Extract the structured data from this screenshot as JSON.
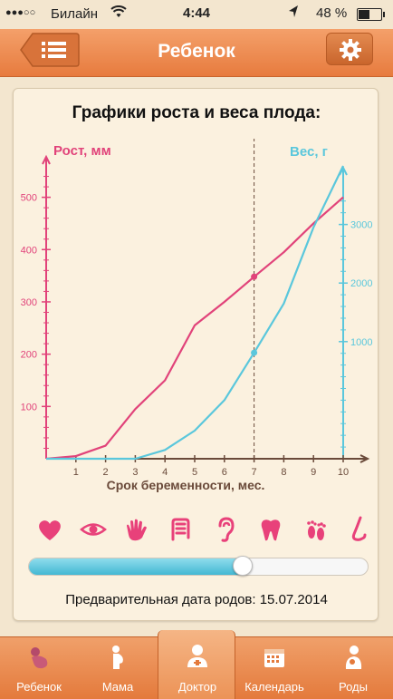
{
  "status": {
    "signal": "●●●○○",
    "carrier": "Билайн",
    "time": "4:44",
    "battery": "48 %",
    "battery_level": 0.48
  },
  "nav": {
    "title": "Ребенок",
    "menu_icon": "menu-icon",
    "settings_icon": "gear-icon"
  },
  "card": {
    "title": "Графики роста и веса плода:",
    "due_date": "Предварительная дата родов: 15.07.2014"
  },
  "chart_data": {
    "type": "line",
    "xlabel": "Срок беременности, мес.",
    "x_ticks": [
      1,
      2,
      3,
      4,
      5,
      6,
      7,
      8,
      9,
      10
    ],
    "xlim": [
      0,
      10.3
    ],
    "marker_x": 7,
    "left_axis": {
      "label": "Рост, мм",
      "ticks": [
        100,
        200,
        300,
        400,
        500
      ],
      "ylim": [
        0,
        560
      ],
      "color": "#e1437a"
    },
    "right_axis": {
      "label": "Вес, г",
      "ticks": [
        1000,
        2000,
        3000
      ],
      "ylim": [
        -1000,
        4000
      ],
      "color": "#5ac7dc"
    },
    "series": [
      {
        "axis": "left",
        "color": "#e1437a",
        "x": [
          0,
          1,
          2,
          3,
          4,
          5,
          6,
          7,
          8,
          9,
          10
        ],
        "values": [
          0,
          5,
          25,
          95,
          150,
          255,
          300,
          348,
          395,
          450,
          500
        ]
      },
      {
        "axis": "right",
        "color": "#5ac7dc",
        "x": [
          0,
          1,
          2,
          3,
          4,
          5,
          6,
          7,
          8,
          9,
          10
        ],
        "values": [
          -1000,
          -1000,
          -1000,
          -1000,
          -850,
          -520,
          0,
          810,
          1650,
          2950,
          4000
        ]
      }
    ],
    "highlight_points": [
      {
        "axis": "left",
        "x": 7,
        "value": 348
      },
      {
        "axis": "right",
        "x": 7,
        "value": 810
      }
    ]
  },
  "organs": [
    {
      "name": "heart",
      "icon": "heart-icon"
    },
    {
      "name": "eye",
      "icon": "eye-icon"
    },
    {
      "name": "hand",
      "icon": "hand-icon"
    },
    {
      "name": "intestine",
      "icon": "intestine-icon"
    },
    {
      "name": "ear",
      "icon": "ear-icon"
    },
    {
      "name": "tooth",
      "icon": "tooth-icon"
    },
    {
      "name": "feet",
      "icon": "feet-icon"
    },
    {
      "name": "nose",
      "icon": "nose-icon"
    }
  ],
  "slider": {
    "value": 0.63
  },
  "tabs": [
    {
      "label": "Ребенок",
      "icon": "baby-icon"
    },
    {
      "label": "Мама",
      "icon": "pregnant-icon"
    },
    {
      "label": "Доктор",
      "icon": "doctor-icon"
    },
    {
      "label": "Календарь",
      "icon": "calendar-icon"
    },
    {
      "label": "Роды",
      "icon": "mother-child-icon"
    }
  ],
  "colors": {
    "accent": "#e77b3e",
    "pink": "#e1437a",
    "cyan": "#5ac7dc"
  }
}
